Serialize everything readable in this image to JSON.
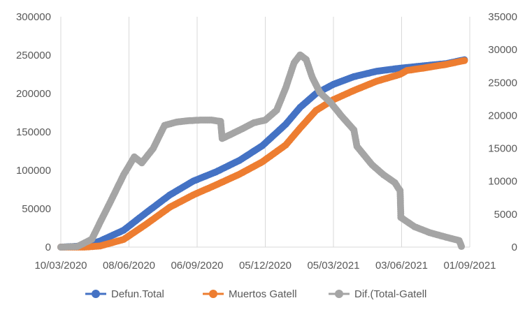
{
  "chart_data": {
    "type": "line",
    "title": "",
    "xlabel": "",
    "ylabel": "",
    "x_range": [
      "2020-03-10",
      "2021-09-01"
    ],
    "x_ticks": [
      "10/03/2020",
      "08/06/2020",
      "06/09/2020",
      "05/12/2020",
      "05/03/2021",
      "03/06/2021",
      "01/09/2021"
    ],
    "y_left": {
      "min": 0,
      "max": 300000,
      "ticks": [
        "0",
        "50000",
        "100000",
        "150000",
        "200000",
        "250000",
        "300000"
      ]
    },
    "y_right": {
      "min": 0,
      "max": 35000,
      "ticks": [
        "0",
        "5000",
        "10000",
        "15000",
        "20000",
        "25000",
        "30000",
        "35000"
      ]
    },
    "grid": "vertical",
    "legend_position": "bottom",
    "series": [
      {
        "name": "Defun.Total",
        "axis": "left",
        "color": "#4472C4",
        "points": [
          [
            "2020-03-10",
            0
          ],
          [
            "2020-04-10",
            1500
          ],
          [
            "2020-05-01",
            8000
          ],
          [
            "2020-06-01",
            22000
          ],
          [
            "2020-07-01",
            45000
          ],
          [
            "2020-08-01",
            68000
          ],
          [
            "2020-09-01",
            86000
          ],
          [
            "2020-10-01",
            98000
          ],
          [
            "2020-11-01",
            113000
          ],
          [
            "2020-12-01",
            132000
          ],
          [
            "2021-01-01",
            160000
          ],
          [
            "2021-01-20",
            182000
          ],
          [
            "2021-02-10",
            200000
          ],
          [
            "2021-03-05",
            212000
          ],
          [
            "2021-04-01",
            222000
          ],
          [
            "2021-05-01",
            229000
          ],
          [
            "2021-06-01",
            233000
          ],
          [
            "2021-07-01",
            236000
          ],
          [
            "2021-08-01",
            239000
          ],
          [
            "2021-08-25",
            244000
          ]
        ]
      },
      {
        "name": "Muertos Gatell",
        "axis": "left",
        "color": "#ED7D31",
        "points": [
          [
            "2020-03-10",
            0
          ],
          [
            "2020-04-10",
            0
          ],
          [
            "2020-05-01",
            1500
          ],
          [
            "2020-06-01",
            10000
          ],
          [
            "2020-07-01",
            30000
          ],
          [
            "2020-08-01",
            52000
          ],
          [
            "2020-09-01",
            68000
          ],
          [
            "2020-10-01",
            81000
          ],
          [
            "2020-11-01",
            95000
          ],
          [
            "2020-12-01",
            111000
          ],
          [
            "2021-01-01",
            133000
          ],
          [
            "2021-01-20",
            155000
          ],
          [
            "2021-02-10",
            178000
          ],
          [
            "2021-03-05",
            192000
          ],
          [
            "2021-04-01",
            204000
          ],
          [
            "2021-05-01",
            216000
          ],
          [
            "2021-06-01",
            225000
          ],
          [
            "2021-06-10",
            230000
          ],
          [
            "2021-07-01",
            233000
          ],
          [
            "2021-08-01",
            238000
          ],
          [
            "2021-08-25",
            243000
          ]
        ]
      },
      {
        "name": "Dif.(Total-Gatell",
        "axis": "right",
        "color": "#A5A5A5",
        "points": [
          [
            "2020-03-10",
            0
          ],
          [
            "2020-04-01",
            100
          ],
          [
            "2020-04-20",
            1200
          ],
          [
            "2020-05-01",
            3800
          ],
          [
            "2020-05-15",
            7000
          ],
          [
            "2020-06-01",
            11000
          ],
          [
            "2020-06-15",
            13700
          ],
          [
            "2020-06-25",
            12800
          ],
          [
            "2020-07-10",
            15000
          ],
          [
            "2020-07-25",
            18500
          ],
          [
            "2020-08-10",
            19000
          ],
          [
            "2020-08-25",
            19200
          ],
          [
            "2020-09-10",
            19300
          ],
          [
            "2020-09-25",
            19300
          ],
          [
            "2020-10-07",
            19100
          ],
          [
            "2020-10-09",
            16500
          ],
          [
            "2020-10-20",
            17100
          ],
          [
            "2020-11-05",
            18000
          ],
          [
            "2020-11-20",
            18900
          ],
          [
            "2020-12-05",
            19300
          ],
          [
            "2020-12-20",
            20800
          ],
          [
            "2021-01-01",
            24200
          ],
          [
            "2021-01-12",
            28000
          ],
          [
            "2021-01-20",
            29200
          ],
          [
            "2021-01-28",
            28500
          ],
          [
            "2021-02-05",
            25800
          ],
          [
            "2021-02-15",
            23500
          ],
          [
            "2021-03-01",
            22000
          ],
          [
            "2021-03-15",
            20000
          ],
          [
            "2021-04-01",
            17800
          ],
          [
            "2021-04-05",
            15300
          ],
          [
            "2021-04-25",
            12500
          ],
          [
            "2021-05-10",
            11000
          ],
          [
            "2021-05-25",
            9800
          ],
          [
            "2021-05-30",
            8900
          ],
          [
            "2021-06-01",
            8600
          ],
          [
            "2021-06-02",
            4500
          ],
          [
            "2021-06-20",
            3100
          ],
          [
            "2021-07-10",
            2200
          ],
          [
            "2021-08-01",
            1500
          ],
          [
            "2021-08-18",
            1000
          ],
          [
            "2021-08-21",
            100
          ]
        ]
      }
    ]
  }
}
